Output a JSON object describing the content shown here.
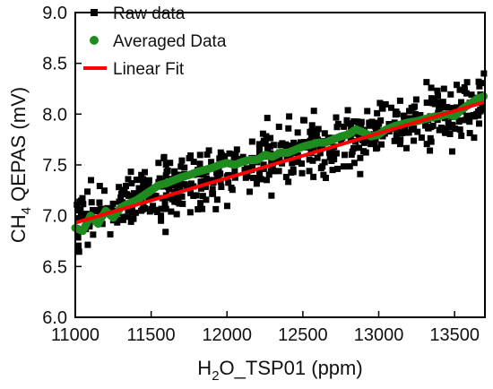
{
  "chart_data": {
    "type": "scatter",
    "xlim": [
      11000,
      13700
    ],
    "ylim": [
      6.0,
      9.0
    ],
    "x_ticks": [
      11000,
      11500,
      12000,
      12500,
      13000,
      13500
    ],
    "y_ticks": [
      "6.0",
      "6.5",
      "7.0",
      "7.5",
      "8.0",
      "8.5",
      "9.0"
    ],
    "xlabel": {
      "main": "H",
      "sub": "2",
      "rest": "O_TSP01 (ppm)"
    },
    "ylabel": {
      "main": "CH",
      "sub": "4",
      "rest": " QEPAS (mV)"
    },
    "legend_position": "top-left",
    "grid": false,
    "series": [
      {
        "name": "Raw data",
        "kind": "scatter-square",
        "color": "#000000",
        "trend": {
          "x": [
            11000,
            11500,
            12000,
            12500,
            13000,
            13700
          ],
          "y": [
            6.95,
            7.2,
            7.45,
            7.65,
            7.85,
            8.12
          ]
        },
        "spread": 0.28,
        "count": 600
      },
      {
        "name": "Averaged Data",
        "kind": "scatter-circle",
        "color": "#1e8c1e",
        "x": [
          11000,
          11050,
          11100,
          11150,
          11200,
          11250,
          11300,
          11350,
          11400,
          11450,
          11500,
          11550,
          11600,
          11650,
          11700,
          11750,
          11800,
          11850,
          11900,
          11950,
          12000,
          12050,
          12100,
          12150,
          12200,
          12250,
          12300,
          12350,
          12400,
          12450,
          12500,
          12550,
          12600,
          12650,
          12700,
          12750,
          12800,
          12850,
          12900,
          12950,
          13000,
          13050,
          13100,
          13150,
          13200,
          13250,
          13300,
          13350,
          13400,
          13450,
          13500,
          13550,
          13600,
          13650,
          13700
        ],
        "y": [
          6.88,
          6.85,
          7.0,
          6.92,
          7.05,
          6.98,
          7.08,
          7.12,
          7.15,
          7.2,
          7.25,
          7.3,
          7.32,
          7.35,
          7.38,
          7.4,
          7.43,
          7.45,
          7.47,
          7.5,
          7.52,
          7.5,
          7.53,
          7.55,
          7.55,
          7.6,
          7.58,
          7.62,
          7.62,
          7.65,
          7.68,
          7.7,
          7.72,
          7.72,
          7.75,
          7.78,
          7.8,
          7.85,
          7.82,
          7.78,
          7.8,
          7.85,
          7.88,
          7.9,
          7.92,
          7.93,
          7.95,
          7.97,
          7.98,
          8.0,
          7.98,
          8.05,
          8.1,
          8.15,
          8.18
        ]
      },
      {
        "name": "Linear Fit",
        "kind": "line",
        "color": "#ff0000",
        "x": [
          11000,
          13700
        ],
        "y": [
          6.93,
          8.12
        ]
      }
    ]
  }
}
